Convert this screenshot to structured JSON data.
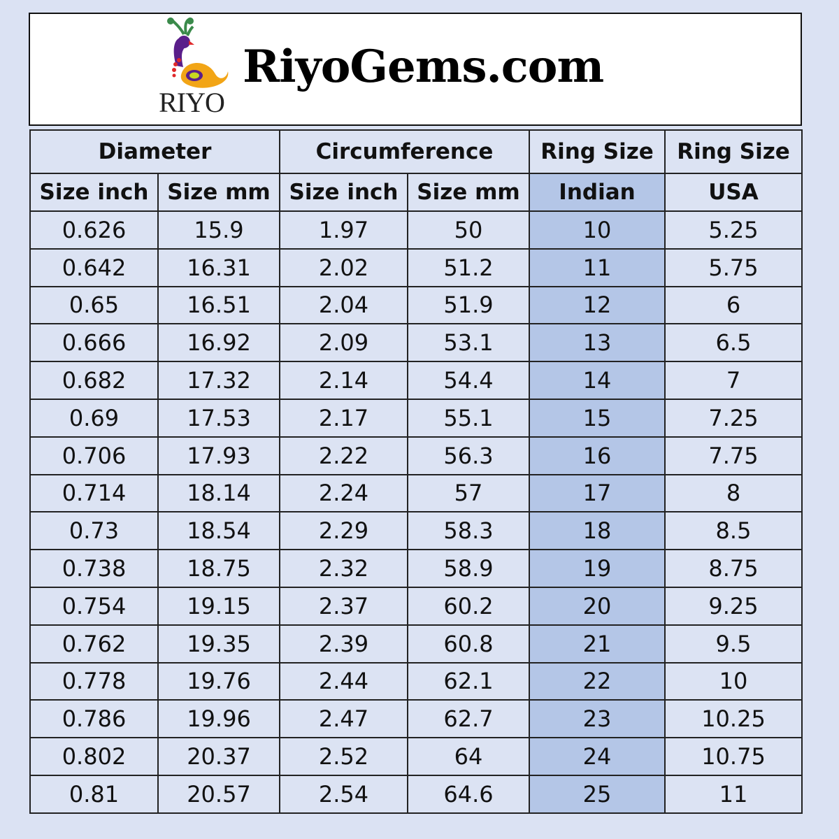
{
  "brand": {
    "site_title": "RiyoGems.com",
    "logo_text": "RIYO"
  },
  "table": {
    "group_headers": [
      "Diameter",
      "Circumference",
      "Ring Size",
      "Ring Size"
    ],
    "sub_headers": [
      "Size inch",
      "Size mm",
      "Size inch",
      "Size mm",
      "Indian",
      "USA"
    ],
    "highlight_color": "#b4c6e7",
    "rows": [
      [
        "0.626",
        "15.9",
        "1.97",
        "50",
        "10",
        "5.25"
      ],
      [
        "0.642",
        "16.31",
        "2.02",
        "51.2",
        "11",
        "5.75"
      ],
      [
        "0.65",
        "16.51",
        "2.04",
        "51.9",
        "12",
        "6"
      ],
      [
        "0.666",
        "16.92",
        "2.09",
        "53.1",
        "13",
        "6.5"
      ],
      [
        "0.682",
        "17.32",
        "2.14",
        "54.4",
        "14",
        "7"
      ],
      [
        "0.69",
        "17.53",
        "2.17",
        "55.1",
        "15",
        "7.25"
      ],
      [
        "0.706",
        "17.93",
        "2.22",
        "56.3",
        "16",
        "7.75"
      ],
      [
        "0.714",
        "18.14",
        "2.24",
        "57",
        "17",
        "8"
      ],
      [
        "0.73",
        "18.54",
        "2.29",
        "58.3",
        "18",
        "8.5"
      ],
      [
        "0.738",
        "18.75",
        "2.32",
        "58.9",
        "19",
        "8.75"
      ],
      [
        "0.754",
        "19.15",
        "2.37",
        "60.2",
        "20",
        "9.25"
      ],
      [
        "0.762",
        "19.35",
        "2.39",
        "60.8",
        "21",
        "9.5"
      ],
      [
        "0.778",
        "19.76",
        "2.44",
        "62.1",
        "22",
        "10"
      ],
      [
        "0.786",
        "19.96",
        "2.47",
        "62.7",
        "23",
        "10.25"
      ],
      [
        "0.802",
        "20.37",
        "2.52",
        "64",
        "24",
        "10.75"
      ],
      [
        "0.81",
        "20.57",
        "2.54",
        "64.6",
        "25",
        "11"
      ]
    ]
  }
}
